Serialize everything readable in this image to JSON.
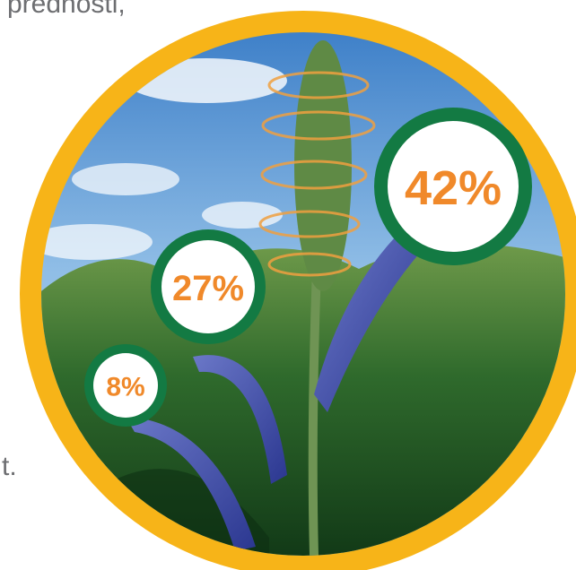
{
  "text_fragments": {
    "top": "prednosti,",
    "side": "t."
  },
  "bubbles": [
    {
      "label": "8%"
    },
    {
      "label": "27%"
    },
    {
      "label": "42%"
    }
  ]
}
